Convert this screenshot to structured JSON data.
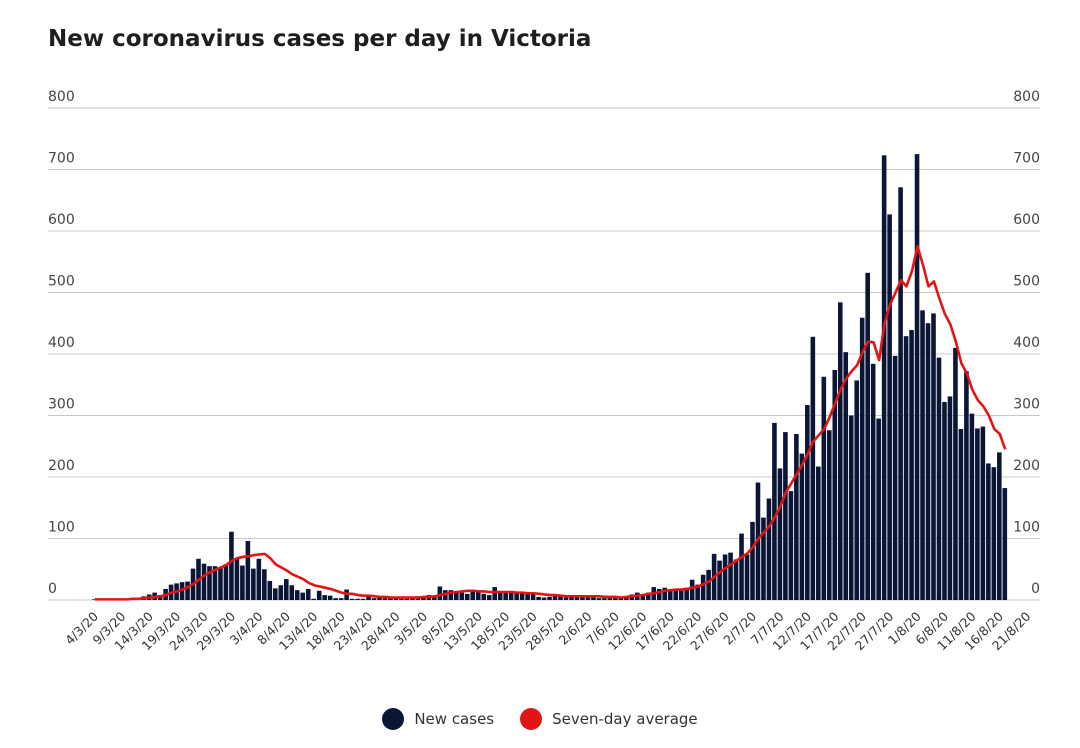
{
  "chart_data": {
    "type": "bar",
    "title": "New coronavirus cases per day in Victoria",
    "ylim": [
      0,
      800
    ],
    "yticks": [
      "0",
      "100",
      "200",
      "300",
      "400",
      "500",
      "600",
      "700",
      "800"
    ],
    "x_tick_labels": [
      "4/3/20",
      "9/3/20",
      "14/3/20",
      "19/3/20",
      "24/3/20",
      "29/3/20",
      "3/4/20",
      "8/4/20",
      "13/4/20",
      "18/4/20",
      "23/4/20",
      "28/4/20",
      "3/5/20",
      "8/5/20",
      "13/5/20",
      "18/5/20",
      "23/5/20",
      "28/5/20",
      "2/6/20",
      "7/6/20",
      "12/6/20",
      "17/6/20",
      "22/6/20",
      "27/6/20",
      "2/7/20",
      "7/7/20",
      "12/7/20",
      "17/7/20",
      "22/7/20",
      "27/7/20",
      "1/8/20",
      "6/8/20",
      "11/8/20",
      "16/8/20",
      "21/8/20"
    ],
    "grid": true,
    "legend_position": "bottom",
    "series": [
      {
        "name": "New cases",
        "type": "bar",
        "color": "#0b1535",
        "values": [
          1,
          1,
          1,
          1,
          1,
          1,
          2,
          3,
          3,
          6,
          9,
          12,
          8,
          18,
          25,
          27,
          29,
          30,
          51,
          67,
          59,
          55,
          55,
          52,
          58,
          111,
          68,
          56,
          96,
          51,
          67,
          50,
          31,
          19,
          24,
          34,
          24,
          16,
          12,
          18,
          2,
          15,
          8,
          7,
          3,
          3,
          17,
          2,
          2,
          2,
          7,
          3,
          4,
          3,
          4,
          3,
          2,
          2,
          4,
          6,
          5,
          8,
          7,
          22,
          16,
          16,
          12,
          12,
          10,
          13,
          13,
          10,
          8,
          21,
          13,
          14,
          12,
          11,
          11,
          11,
          9,
          5,
          4,
          5,
          8,
          7,
          4,
          8,
          8,
          8,
          4,
          4,
          3,
          3,
          3,
          3,
          5,
          5,
          9,
          12,
          8,
          12,
          21,
          18,
          20,
          16,
          17,
          17,
          20,
          33,
          25,
          41,
          49,
          75,
          64,
          74,
          77,
          66,
          108,
          74,
          127,
          191,
          134,
          165,
          288,
          214,
          273,
          177,
          270,
          238,
          317,
          428,
          217,
          363,
          276,
          374,
          484,
          403,
          300,
          357,
          459,
          532,
          384,
          295,
          723,
          627,
          397,
          671,
          429,
          439,
          725,
          471,
          450,
          466,
          394,
          322,
          331,
          410,
          278,
          372,
          303,
          279,
          282,
          222,
          216,
          240,
          182
        ]
      },
      {
        "name": "Seven-day average",
        "type": "line",
        "color": "#e31414",
        "values": [
          1,
          1,
          1,
          1,
          1,
          1,
          1,
          2,
          2,
          3,
          4,
          5,
          6,
          8,
          12,
          14,
          17,
          21,
          26,
          33,
          40,
          45,
          49,
          53,
          57,
          64,
          68,
          70,
          71,
          73,
          74,
          75,
          68,
          58,
          53,
          48,
          42,
          38,
          34,
          28,
          24,
          22,
          20,
          18,
          15,
          12,
          10,
          10,
          8,
          7,
          7,
          6,
          5,
          5,
          4,
          4,
          4,
          4,
          4,
          4,
          5,
          5,
          6,
          8,
          10,
          12,
          13,
          14,
          15,
          15,
          14,
          14,
          13,
          13,
          13,
          13,
          13,
          12,
          12,
          11,
          11,
          10,
          9,
          8,
          8,
          7,
          6,
          6,
          6,
          6,
          6,
          6,
          6,
          5,
          5,
          5,
          4,
          5,
          6,
          7,
          8,
          10,
          11,
          13,
          15,
          16,
          17,
          17,
          18,
          20,
          22,
          26,
          30,
          38,
          45,
          52,
          58,
          64,
          70,
          76,
          86,
          100,
          110,
          120,
          135,
          152,
          175,
          190,
          205,
          220,
          238,
          258,
          268,
          278,
          298,
          320,
          343,
          360,
          372,
          382,
          403,
          420,
          419,
          390,
          450,
          480,
          500,
          520,
          510,
          535,
          575,
          545,
          510,
          518,
          490,
          465,
          448,
          420,
          385,
          368,
          342,
          325,
          315,
          300,
          278,
          270,
          245
        ]
      }
    ]
  },
  "legend": {
    "new_cases": "New cases",
    "seven_day": "Seven-day average"
  }
}
